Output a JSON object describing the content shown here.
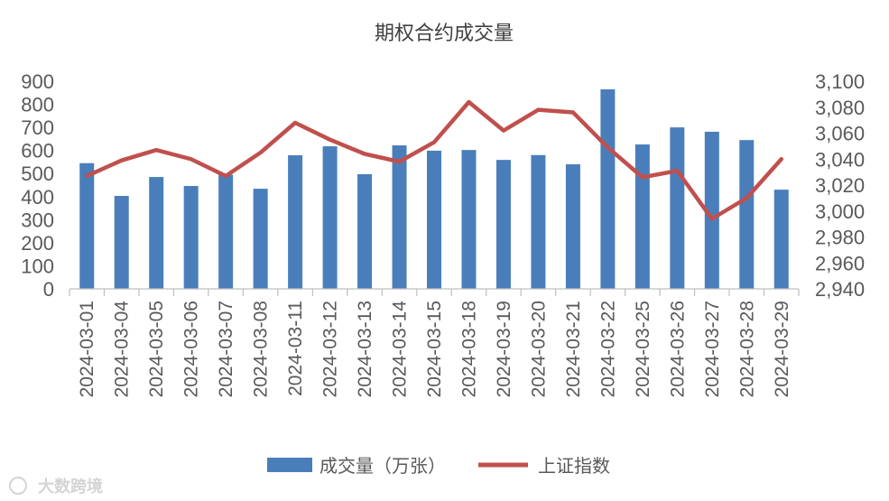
{
  "chart_data": {
    "type": "bar",
    "title": "期权合约成交量",
    "categories": [
      "2024-03-01",
      "2024-03-04",
      "2024-03-05",
      "2024-03-06",
      "2024-03-07",
      "2024-03-08",
      "2024-03-11",
      "2024-03-12",
      "2024-03-13",
      "2024-03-14",
      "2024-03-15",
      "2024-03-18",
      "2024-03-19",
      "2024-03-20",
      "2024-03-21",
      "2024-03-22",
      "2024-03-25",
      "2024-03-26",
      "2024-03-27",
      "2024-03-28",
      "2024-03-29"
    ],
    "series": [
      {
        "name": "成交量（万张）",
        "type": "bar",
        "axis": "left",
        "color": "#4a7ebb",
        "values": [
          545,
          403,
          485,
          446,
          495,
          434,
          579,
          618,
          497,
          622,
          599,
          602,
          559,
          580,
          540,
          865,
          626,
          700,
          681,
          645,
          430
        ]
      },
      {
        "name": "上证指数",
        "type": "line",
        "axis": "right",
        "color": "#c0504d",
        "values": [
          3027,
          3039,
          3047,
          3040,
          3027,
          3045,
          3068,
          3055,
          3044,
          3038,
          3053,
          3084,
          3062,
          3078,
          3076,
          3049,
          3026,
          3031,
          2994,
          3010,
          3040
        ]
      }
    ],
    "ylim": [
      0,
      900
    ],
    "y2lim": [
      2940,
      3100
    ],
    "y_ticks": [
      "0",
      "100",
      "200",
      "300",
      "400",
      "500",
      "600",
      "700",
      "800",
      "900"
    ],
    "y2_ticks": [
      "2,940",
      "2,960",
      "2,980",
      "3,000",
      "3,020",
      "3,040",
      "3,060",
      "3,080",
      "3,100"
    ],
    "xlabel": "",
    "ylabel": "",
    "y2label": "",
    "grid": false,
    "legend": "bottom"
  },
  "watermark": {
    "text": "大数跨境",
    "icon": "logo-icon"
  }
}
